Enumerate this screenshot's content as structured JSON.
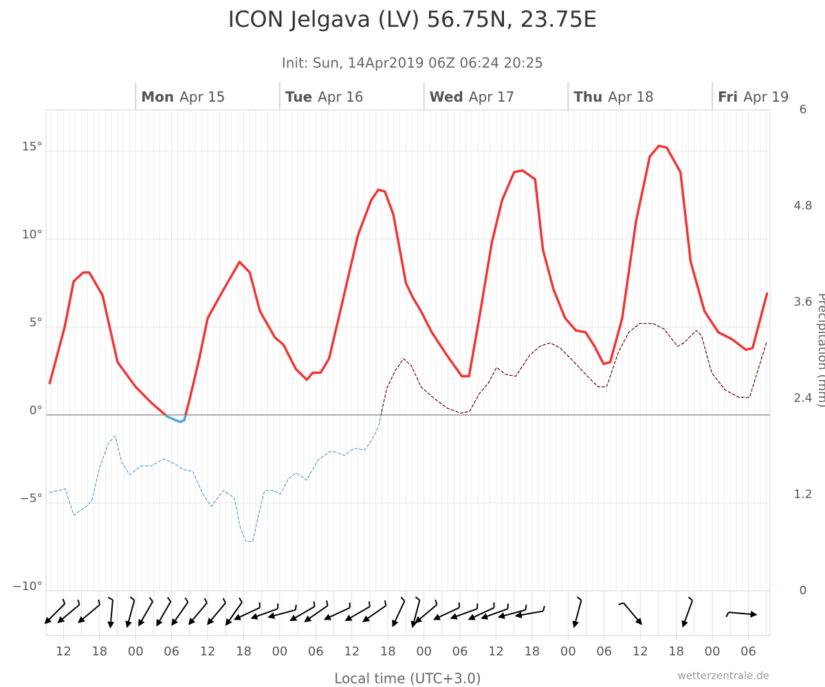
{
  "chart_data": {
    "type": "line",
    "title": "ICON Jelgava (LV) 56.75N, 23.75E",
    "subtitle": "Init: Sun, 14Apr2019 06Z 06:24 20:25",
    "xlabel": "Local time (UTC+3.0)",
    "y2label": "Precipitation (mm)",
    "credit": "wetterzentrale.de",
    "xlim": [
      9.1,
      129.6
    ],
    "xticks": [
      {
        "value": 12,
        "label": "12"
      },
      {
        "value": 18,
        "label": "18"
      },
      {
        "value": 24,
        "label": "00"
      },
      {
        "value": 30,
        "label": "06"
      },
      {
        "value": 36,
        "label": "12"
      },
      {
        "value": 42,
        "label": "18"
      },
      {
        "value": 48,
        "label": "00"
      },
      {
        "value": 54,
        "label": "06"
      },
      {
        "value": 60,
        "label": "12"
      },
      {
        "value": 66,
        "label": "18"
      },
      {
        "value": 72,
        "label": "00"
      },
      {
        "value": 78,
        "label": "06"
      },
      {
        "value": 84,
        "label": "12"
      },
      {
        "value": 90,
        "label": "18"
      },
      {
        "value": 96,
        "label": "00"
      },
      {
        "value": 102,
        "label": "06"
      },
      {
        "value": 108,
        "label": "12"
      },
      {
        "value": 114,
        "label": "18"
      },
      {
        "value": 120,
        "label": "00"
      },
      {
        "value": 126,
        "label": "06"
      }
    ],
    "days": [
      {
        "value": 24,
        "day": "Mon",
        "date": "Apr 15"
      },
      {
        "value": 48,
        "day": "Tue",
        "date": "Apr 16"
      },
      {
        "value": 72,
        "day": "Wed",
        "date": "Apr 17"
      },
      {
        "value": 96,
        "day": "Thu",
        "date": "Apr 18"
      },
      {
        "value": 120,
        "day": "Fri",
        "date": "Apr 19"
      }
    ],
    "ylim": [
      -10,
      17.34
    ],
    "yticks": [
      {
        "value": -10,
        "label": "−10°"
      },
      {
        "value": -5,
        "label": "−5°"
      },
      {
        "value": 0,
        "label": "0°"
      },
      {
        "value": 5,
        "label": "5°"
      },
      {
        "value": 10,
        "label": "10°"
      },
      {
        "value": 15,
        "label": "15°"
      }
    ],
    "y2lim": [
      0,
      6
    ],
    "y2ticks": [
      0,
      1.2,
      2.4,
      3.6,
      4.8,
      6
    ],
    "grid": true,
    "series": [
      {
        "color": "#f03535",
        "negative_color": "#4aa7dd",
        "dashed": false,
        "x": [
          9.7,
          12.2,
          13.7,
          15.3,
          16.3,
          18.5,
          21,
          24,
          26.6,
          29.3,
          31.4,
          32.1,
          33,
          34.6,
          36,
          38.6,
          41.3,
          43,
          44.7,
          47.2,
          48.6,
          50.7,
          52.5,
          53.5,
          54.8,
          56.2,
          57.8,
          61,
          63.2,
          64.4,
          65.5,
          66.9,
          69,
          70.1,
          71.5,
          73.3,
          75.8,
          78.3,
          79.5,
          81.2,
          83.3,
          85,
          87,
          88.4,
          90.5,
          91.8,
          93.6,
          95.5,
          97.3,
          98.9,
          100.4,
          101.9,
          103,
          105,
          107.3,
          109.6,
          111.1,
          112.4,
          114.7,
          116.4,
          118.7,
          121,
          123.3,
          125.6,
          126.7,
          129.1
        ],
        "values": [
          1.8,
          5,
          7.6,
          8.1,
          8.1,
          6.8,
          3,
          1.6,
          0.7,
          -0.1,
          -0.4,
          -0.3,
          0.9,
          3.2,
          5.5,
          7.1,
          8.7,
          8.1,
          5.9,
          4.4,
          4,
          2.6,
          2,
          2.4,
          2.4,
          3.2,
          5.5,
          10.2,
          12.2,
          12.8,
          12.7,
          11.4,
          7.5,
          6.7,
          5.9,
          4.7,
          3.4,
          2.2,
          2.2,
          5.5,
          9.8,
          12.2,
          13.8,
          13.9,
          13.4,
          9.4,
          7.1,
          5.5,
          4.8,
          4.7,
          3.9,
          2.9,
          3,
          5.5,
          11,
          14.7,
          15.3,
          15.2,
          13.8,
          8.7,
          5.9,
          4.7,
          4.3,
          3.7,
          3.8,
          6.9
        ]
      },
      {
        "color": "#6b0000",
        "negative_color": "#5a9bd5",
        "dashed": true,
        "x": [
          9.7,
          11.2,
          12.3,
          13.7,
          15.8,
          16.7,
          18,
          19.5,
          20.6,
          21.7,
          23,
          24.9,
          26.6,
          28.7,
          30.6,
          31.8,
          33.5,
          35.2,
          36.6,
          38.6,
          40.4,
          41.5,
          42.4,
          43.5,
          44.7,
          45.5,
          47,
          48.1,
          49.5,
          50.7,
          52.5,
          54.3,
          56.2,
          57.3,
          58.7,
          60.4,
          62.1,
          63.2,
          64.4,
          65.8,
          67.2,
          68.6,
          69.9,
          71.5,
          73.5,
          75.8,
          78.1,
          79.6,
          81.2,
          82.7,
          84.1,
          85.6,
          87.3,
          89.6,
          91.3,
          93,
          94.7,
          97,
          99.5,
          101,
          102.4,
          104.4,
          106.1,
          107.9,
          110.1,
          111.9,
          114.2,
          115.3,
          117.3,
          118.2,
          119.9,
          122.2,
          124.5,
          126.2,
          129
        ],
        "values": [
          -4.4,
          -4.3,
          -4.2,
          -5.7,
          -5.2,
          -4.9,
          -3,
          -1.6,
          -1.2,
          -2.7,
          -3.4,
          -2.9,
          -2.9,
          -2.5,
          -2.8,
          -3.1,
          -3.2,
          -4.5,
          -5.2,
          -4.3,
          -4.7,
          -6.5,
          -7.2,
          -7.2,
          -5.3,
          -4.3,
          -4.3,
          -4.5,
          -3.6,
          -3.3,
          -3.7,
          -2.6,
          -2.1,
          -2.1,
          -2.3,
          -1.9,
          -2,
          -1.5,
          -0.7,
          1.5,
          2.5,
          3.2,
          2.8,
          1.6,
          1,
          0.4,
          0.1,
          0.2,
          1.2,
          1.8,
          2.7,
          2.3,
          2.2,
          3.4,
          3.9,
          4.1,
          3.8,
          3,
          2.1,
          1.6,
          1.6,
          3.6,
          4.7,
          5.2,
          5.2,
          4.9,
          3.9,
          4.1,
          4.8,
          4.5,
          2.4,
          1.4,
          1,
          1,
          4.1
        ]
      }
    ],
    "wind": {
      "x": [
        10.6,
        12.9,
        16.3,
        20,
        23.2,
        25.7,
        28.7,
        31.4,
        34.4,
        37.5,
        40.4,
        42.6,
        45.5,
        48.4,
        51.8,
        54.1,
        57.6,
        61,
        63.8,
        67.8,
        70.7,
        72.4,
        75.8,
        78.7,
        81.6,
        83.8,
        86.7,
        89.6,
        97.6,
        106.7,
        115.9,
        125
      ],
      "direction": [
        45,
        50,
        50,
        5,
        15,
        30,
        30,
        35,
        40,
        40,
        35,
        65,
        70,
        75,
        60,
        55,
        65,
        60,
        55,
        25,
        15,
        50,
        65,
        70,
        65,
        70,
        75,
        80,
        15,
        320,
        20,
        275
      ]
    }
  }
}
